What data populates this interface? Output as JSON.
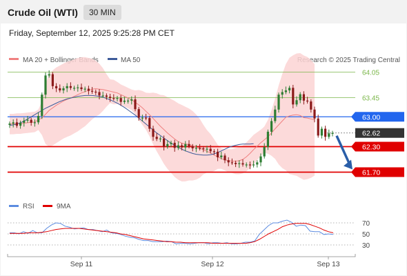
{
  "header": {
    "title": "Crude Oil (WTI)",
    "timeframe": "30 MIN"
  },
  "datetime": "Friday, September 12, 2025 9:25:28 PM CET",
  "credit": "Research © 2025 Trading Central",
  "legend": {
    "ma20": "MA 20 + Bollinger Bands",
    "ma50": "MA 50",
    "rsi": "RSI",
    "ma9": "9MA"
  },
  "colors": {
    "ma20": "#f08080",
    "band": "#fcd3d3",
    "ma50": "#3d5a99",
    "resist": "#2266ee",
    "support": "#e00000",
    "green": "#7ab648",
    "current": "#333333",
    "arrow": "#2a5ea8",
    "rsi": "#5b8be0",
    "ma9": "#e00000"
  },
  "chart_data": [
    {
      "type": "candlestick",
      "title": "Crude Oil (WTI)",
      "ylim": [
        61.55,
        64.25
      ],
      "x_labels": [
        "Sep 11",
        "Sep 12",
        "Sep 13"
      ],
      "levels": [
        {
          "value": 64.05,
          "label": "64.05",
          "style": "green"
        },
        {
          "value": 63.45,
          "label": "63.45",
          "style": "green"
        },
        {
          "value": 63.0,
          "label": "63.00",
          "style": "resist"
        },
        {
          "value": 62.62,
          "label": "62.62",
          "style": "current"
        },
        {
          "value": 62.3,
          "label": "62.30",
          "style": "support"
        },
        {
          "value": 61.7,
          "label": "61.70",
          "style": "support"
        }
      ],
      "forecast": {
        "from": 62.62,
        "to": 61.7,
        "direction": "down"
      },
      "close_series": [
        62.84,
        62.87,
        62.79,
        62.86,
        62.91,
        62.93,
        62.86,
        62.87,
        63.02,
        63.52,
        63.97,
        64.0,
        63.72,
        63.67,
        63.62,
        63.67,
        63.72,
        63.68,
        63.68,
        63.69,
        63.65,
        63.66,
        63.61,
        63.59,
        63.58,
        63.5,
        63.5,
        63.47,
        63.44,
        63.43,
        63.44,
        63.35,
        63.38,
        63.38,
        63.41,
        63.18,
        62.98,
        62.98,
        62.97,
        62.72,
        62.53,
        62.48,
        62.49,
        62.3,
        62.36,
        62.39,
        62.27,
        62.33,
        62.28,
        62.36,
        62.31,
        62.26,
        62.27,
        62.26,
        62.24,
        62.25,
        62.19,
        62.18,
        62.05,
        62.09,
        61.98,
        61.93,
        61.92,
        61.89,
        61.91,
        61.88,
        61.88,
        61.86,
        61.88,
        61.93,
        62.07,
        62.29,
        62.65,
        62.9,
        63.17,
        63.52,
        63.58,
        63.62,
        63.68,
        63.29,
        63.39,
        63.53,
        63.38,
        63.36,
        63.17,
        62.96,
        62.56,
        62.72,
        62.53,
        62.61,
        62.62
      ],
      "ma20_series": [
        62.83,
        62.83,
        62.84,
        62.84,
        62.85,
        62.86,
        62.87,
        62.88,
        62.93,
        62.97,
        63.06,
        63.15,
        63.21,
        63.27,
        63.32,
        63.37,
        63.41,
        63.44,
        63.48,
        63.52,
        63.56,
        63.59,
        63.62,
        63.65,
        63.66,
        63.65,
        63.64,
        63.62,
        63.6,
        63.58,
        63.56,
        63.52,
        63.48,
        63.44,
        63.4,
        63.34,
        63.28,
        63.21,
        63.13,
        63.05,
        62.96,
        62.87,
        62.78,
        62.7,
        62.62,
        62.55,
        62.48,
        62.42,
        62.38,
        62.36,
        62.35,
        62.32,
        62.29,
        62.26,
        62.23,
        62.19,
        62.15,
        62.1,
        62.06,
        62.02,
        61.99,
        61.97,
        61.96,
        61.96,
        61.97,
        62.0,
        62.06,
        62.14,
        62.23,
        62.31,
        62.39,
        62.46,
        62.53,
        62.62,
        62.72,
        62.81,
        62.9,
        62.99,
        63.02,
        63.04,
        63.05,
        63.03,
        62.98,
        62.97,
        62.95,
        62.93
      ],
      "ma50_series": [
        62.8,
        62.81,
        62.83,
        62.86,
        62.9,
        62.95,
        63.0,
        63.05,
        63.1,
        63.15,
        63.2,
        63.24,
        63.28,
        63.32,
        63.36,
        63.39,
        63.42,
        63.44,
        63.46,
        63.48,
        63.49,
        63.5,
        63.5,
        63.5,
        63.49,
        63.48,
        63.46,
        63.43,
        63.4,
        63.36,
        63.32,
        63.27,
        63.22,
        63.16,
        63.1,
        63.04,
        62.97,
        62.9,
        62.83,
        62.76,
        62.69,
        62.62,
        62.56,
        62.5,
        62.44,
        62.38,
        62.33,
        62.28,
        62.24,
        62.2,
        62.17,
        62.14,
        62.12,
        62.11,
        62.1,
        62.1,
        62.11,
        62.13,
        62.16,
        62.2,
        62.24,
        62.28,
        62.31,
        62.33,
        62.35,
        62.36,
        62.36,
        62.36,
        62.37
      ]
    },
    {
      "type": "line",
      "title": "RSI",
      "ylim": [
        20,
        80
      ],
      "y_ticks": [
        70,
        50,
        30
      ],
      "series": [
        {
          "name": "RSI",
          "values": [
            52,
            52,
            50,
            54,
            51,
            56,
            52,
            52,
            60,
            66,
            70,
            69,
            64,
            62,
            59,
            60,
            61,
            58,
            58,
            56,
            54,
            57,
            52,
            51,
            49,
            46,
            44,
            43,
            40,
            38,
            38,
            36,
            36,
            36,
            37,
            36,
            32,
            33,
            33,
            32,
            33,
            34,
            34,
            32,
            34,
            34,
            33,
            34,
            32,
            32,
            33,
            35,
            35,
            37,
            49,
            57,
            65,
            70,
            70,
            73,
            75,
            71,
            64,
            66,
            65,
            55,
            54,
            54,
            49,
            50,
            49
          ]
        },
        {
          "name": "9MA",
          "values": [
            51,
            51,
            51,
            51,
            52,
            52,
            52,
            53,
            54,
            56,
            58,
            59,
            60,
            60,
            60,
            60,
            59,
            58,
            57,
            56,
            55,
            54,
            53,
            52,
            50,
            49,
            47,
            45,
            43,
            41,
            40,
            39,
            38,
            37,
            36,
            36,
            35,
            35,
            34,
            34,
            34,
            34,
            34,
            34,
            33,
            33,
            33,
            33,
            33,
            33,
            33,
            33,
            34,
            36,
            40,
            45,
            50,
            54,
            58,
            63,
            66,
            68,
            69,
            69,
            69,
            67,
            64,
            61,
            57,
            54,
            52
          ]
        }
      ]
    }
  ]
}
